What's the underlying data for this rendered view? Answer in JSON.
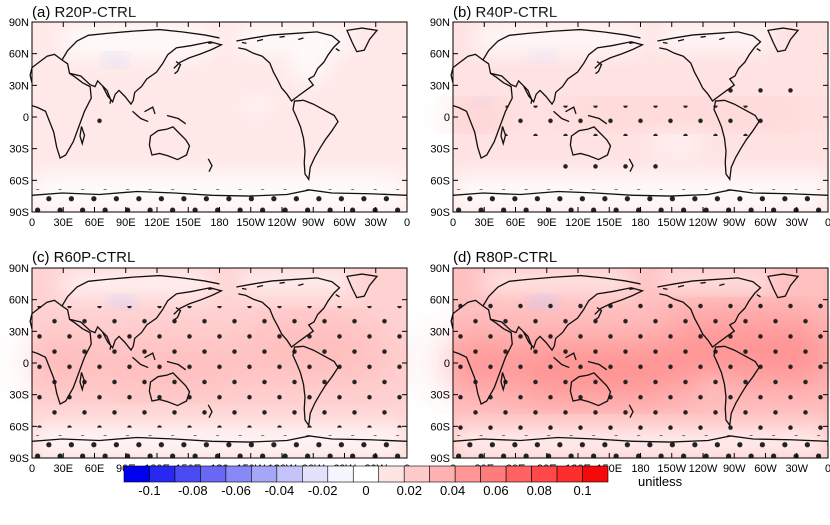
{
  "panels": [
    {
      "title": "(a) R20P-CTRL",
      "intensity": 0.2
    },
    {
      "title": "(b) R40P-CTRL",
      "intensity": 0.45
    },
    {
      "title": "(c) R60P-CTRL",
      "intensity": 0.7
    },
    {
      "title": "(d) R80P-CTRL",
      "intensity": 1.0
    }
  ],
  "lat_ticks": [
    "90N",
    "60N",
    "30N",
    "0",
    "30S",
    "60S",
    "90S"
  ],
  "lon_ticks": [
    "0",
    "30E",
    "60E",
    "90E",
    "120E",
    "150E",
    "180",
    "150W",
    "120W",
    "90W",
    "60W",
    "30W",
    "0"
  ],
  "colorbar": {
    "tick_labels": [
      "-0.1",
      "-0.08",
      "-0.06",
      "-0.04",
      "-0.02",
      "0",
      "0.02",
      "0.04",
      "0.06",
      "0.08",
      "0.1"
    ],
    "unit_label": "unitless",
    "colors": [
      "#0000f0",
      "#2828f2",
      "#4a4af4",
      "#6868f5",
      "#8888f7",
      "#a6a6f9",
      "#c4c4fb",
      "#e2e2fd",
      "#f6f6ff",
      "#ffffff",
      "#ffe4e4",
      "#ffcaca",
      "#ffb0b0",
      "#ff9696",
      "#ff7c7c",
      "#ff6262",
      "#ff4848",
      "#ff2e2e",
      "#f50a0a"
    ]
  },
  "colors": {
    "frame": "#000000",
    "land_line": "#111111",
    "stipple": "#222222"
  }
}
